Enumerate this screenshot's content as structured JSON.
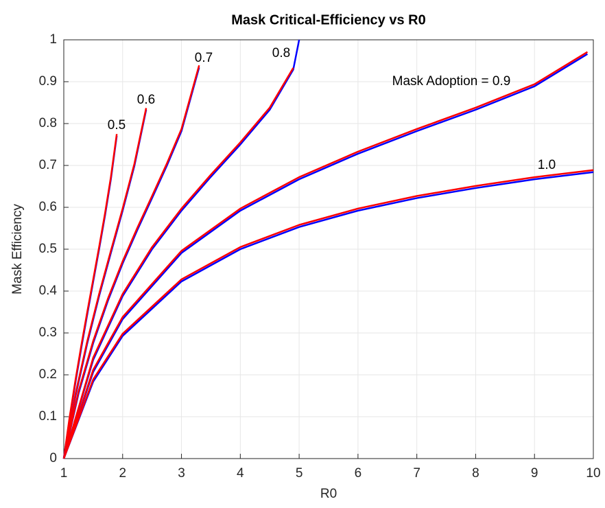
{
  "chart_data": {
    "type": "line",
    "title": "Mask Critical-Efficiency vs R0",
    "x_label": "R0",
    "y_label": "Mask Efficiency",
    "xlim": [
      1,
      10
    ],
    "ylim": [
      0,
      1
    ],
    "xticks": [
      1,
      2,
      3,
      4,
      5,
      6,
      7,
      8,
      9,
      10
    ],
    "yticks": [
      0,
      0.1,
      0.2,
      0.3,
      0.4,
      0.5,
      0.6,
      0.7,
      0.8,
      0.9,
      1
    ],
    "grid": true,
    "annotations": [
      "0.5",
      "0.6",
      "0.7",
      "0.8",
      "Mask Adoption = 0.9",
      "1.0"
    ],
    "series": [
      {
        "color": "#0000ff",
        "x": [
          1,
          1.1,
          1.2,
          1.3,
          1.4,
          1.5,
          1.6,
          1.7,
          1.8,
          1.9
        ],
        "values": [
          0,
          0.0955,
          0.1835,
          0.2662,
          0.3453,
          0.4226,
          0.5,
          0.5799,
          0.6667,
          0.7706
        ]
      },
      {
        "color": "#ff0000",
        "x": [
          1,
          1.1,
          1.2,
          1.3,
          1.4,
          1.5,
          1.6,
          1.7,
          1.8,
          1.9
        ],
        "values": [
          0,
          0.1,
          0.189,
          0.272,
          0.351,
          0.428,
          0.505,
          0.585,
          0.672,
          0.775
        ]
      },
      {
        "color": "#0000ff",
        "x": [
          1,
          1.2,
          1.4,
          1.6,
          1.8,
          2.0,
          2.2,
          2.4
        ],
        "values": [
          0,
          0.15,
          0.276,
          0.388,
          0.491,
          0.592,
          0.699,
          0.833
        ]
      },
      {
        "color": "#ff0000",
        "x": [
          1,
          1.2,
          1.4,
          1.6,
          1.8,
          2.0,
          2.2,
          2.4
        ],
        "values": [
          0,
          0.155,
          0.281,
          0.393,
          0.496,
          0.597,
          0.704,
          0.837
        ]
      },
      {
        "color": "#0000ff",
        "x": [
          1,
          1.25,
          1.5,
          1.75,
          2,
          2.25,
          2.5,
          2.75,
          3,
          3.3
        ],
        "values": [
          0,
          0.155,
          0.276,
          0.377,
          0.466,
          0.546,
          0.622,
          0.699,
          0.782,
          0.934
        ]
      },
      {
        "color": "#ff0000",
        "x": [
          1,
          1.25,
          1.5,
          1.75,
          2,
          2.25,
          2.5,
          2.75,
          3,
          3.3
        ],
        "values": [
          0,
          0.16,
          0.281,
          0.382,
          0.471,
          0.551,
          0.627,
          0.704,
          0.787,
          0.939
        ]
      },
      {
        "color": "#0000ff",
        "x": [
          1,
          1.5,
          2,
          2.5,
          3,
          3.5,
          4,
          4.5,
          4.9,
          5
        ],
        "values": [
          0,
          0.236,
          0.388,
          0.5,
          0.592,
          0.673,
          0.75,
          0.833,
          0.929,
          1
        ]
      },
      {
        "color": "#ff0000",
        "x": [
          1,
          1.5,
          2,
          2.5,
          3,
          3.5,
          4,
          4.5,
          4.9
        ],
        "values": [
          0,
          0.241,
          0.393,
          0.505,
          0.597,
          0.678,
          0.755,
          0.838,
          0.933
        ]
      },
      {
        "color": "#0000ff",
        "x": [
          1,
          1.5,
          2,
          3,
          4,
          5,
          6,
          7,
          8,
          9,
          9.9
        ],
        "values": [
          0,
          0.207,
          0.333,
          0.491,
          0.592,
          0.667,
          0.728,
          0.782,
          0.833,
          0.889,
          0.966
        ]
      },
      {
        "color": "#ff0000",
        "x": [
          1,
          1.5,
          2,
          3,
          4,
          5,
          6,
          7,
          8,
          9,
          9.9
        ],
        "values": [
          0,
          0.212,
          0.338,
          0.496,
          0.597,
          0.672,
          0.733,
          0.787,
          0.838,
          0.894,
          0.971
        ]
      },
      {
        "color": "#0000ff",
        "x": [
          1,
          1.5,
          2,
          3,
          4,
          5,
          6,
          7,
          8,
          9,
          10
        ],
        "values": [
          0,
          0.184,
          0.293,
          0.423,
          0.5,
          0.553,
          0.592,
          0.622,
          0.646,
          0.667,
          0.684
        ]
      },
      {
        "color": "#ff0000",
        "x": [
          1,
          1.5,
          2,
          3,
          4,
          5,
          6,
          7,
          8,
          9,
          10
        ],
        "values": [
          0,
          0.189,
          0.298,
          0.428,
          0.505,
          0.558,
          0.597,
          0.627,
          0.651,
          0.672,
          0.689
        ]
      }
    ]
  }
}
